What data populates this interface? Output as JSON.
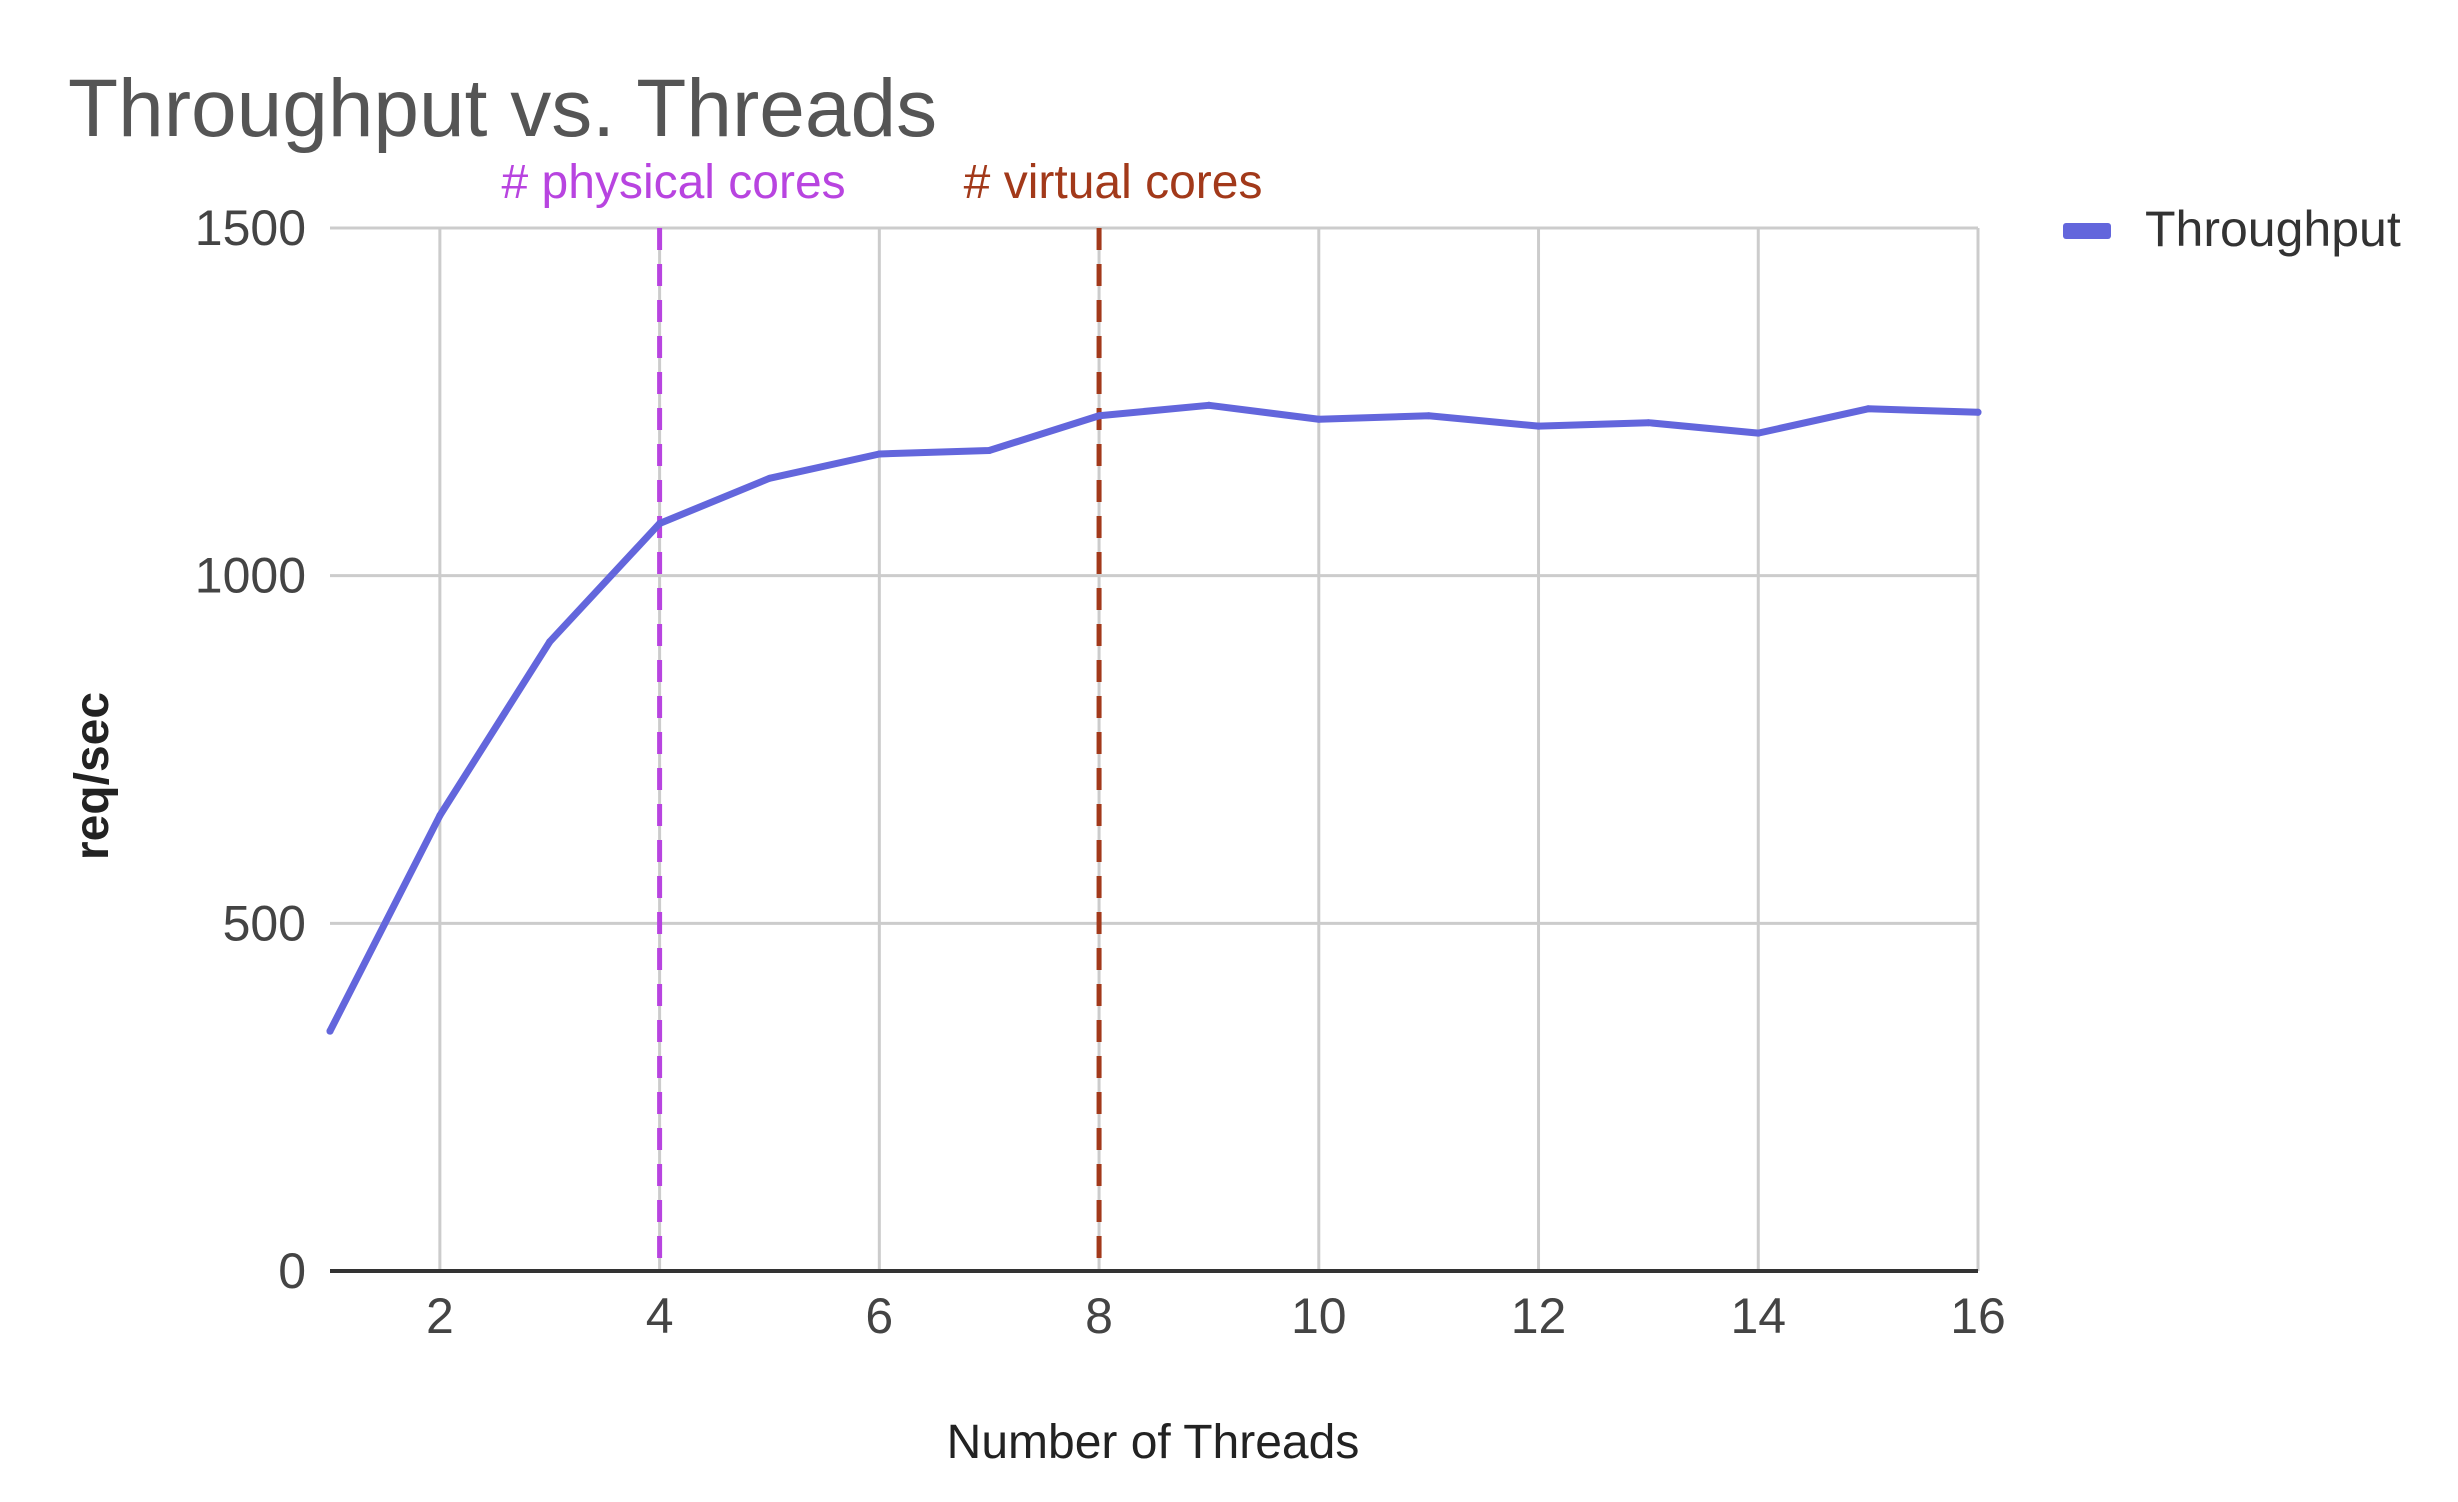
{
  "chart_data": {
    "type": "line",
    "title": "Throughput vs. Threads",
    "xlabel": "Number of Threads",
    "ylabel": "req/sec",
    "x": [
      1,
      2,
      3,
      4,
      5,
      6,
      7,
      8,
      9,
      10,
      11,
      12,
      13,
      14,
      15,
      16
    ],
    "series": [
      {
        "name": "Throughput",
        "color": "#6366dc",
        "values": [
          345,
          655,
          905,
          1075,
          1140,
          1175,
          1180,
          1230,
          1245,
          1225,
          1230,
          1215,
          1220,
          1205,
          1240,
          1235
        ]
      }
    ],
    "xlim": [
      1,
      16
    ],
    "ylim": [
      0,
      1500
    ],
    "xticks": [
      2,
      4,
      6,
      8,
      10,
      12,
      14,
      16
    ],
    "yticks": [
      0,
      500,
      1000,
      1500
    ],
    "xtick_labels": [
      "2",
      "4",
      "6",
      "8",
      "10",
      "12",
      "14",
      "16"
    ],
    "ytick_labels": [
      "0",
      "500",
      "1000",
      "1500"
    ],
    "grid": true,
    "legend": "top-right",
    "annotations": [
      {
        "label": "# physical cores",
        "x": 4,
        "color": "#b844e0",
        "style": "dashed"
      },
      {
        "label": "# virtual cores",
        "x": 8,
        "color": "#a2391a",
        "style": "dashed"
      }
    ]
  }
}
